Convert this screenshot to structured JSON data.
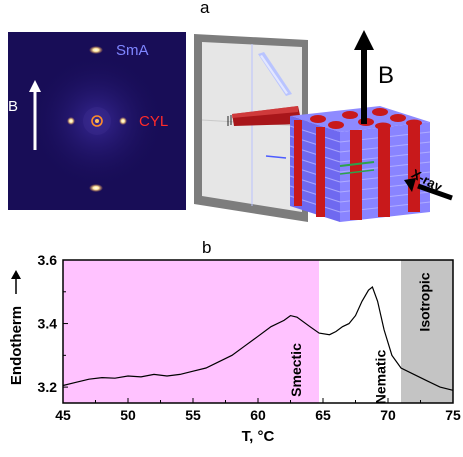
{
  "figure": {
    "panel_a_label": "a",
    "panel_b_label": "b"
  },
  "panel_a": {
    "xray_image": {
      "field_label": "B",
      "peak_label_top": "SmA",
      "peak_label_middle": "CYL",
      "colors": {
        "background": "#1a0c5a",
        "sma_label": "#7f86ff",
        "cyl_label": "#ff2a2a"
      }
    },
    "schematic": {
      "field_label": "B",
      "beam_label": "X-ray",
      "colors": {
        "cylinder": "#c8191b",
        "layer": "#7b76ff",
        "screen": "#d9d9d9"
      }
    }
  },
  "chart_data": {
    "type": "line",
    "xlabel": "T, °C",
    "ylabel": "Endotherm",
    "xlim": [
      45,
      75
    ],
    "ylim": [
      3.15,
      3.6
    ],
    "xticks": [
      45,
      50,
      55,
      60,
      65,
      70,
      75
    ],
    "yticks": [
      3.2,
      3.4,
      3.6
    ],
    "xtick_labels": [
      "45",
      "50",
      "55",
      "60",
      "65",
      "70",
      "75"
    ],
    "ytick_labels": [
      "3.2",
      "3.4",
      "3.6"
    ],
    "regions": [
      {
        "label": "Smectic",
        "from": 45,
        "to": 64.7,
        "color": "#ffc2ff"
      },
      {
        "label": "Nematic",
        "from": 64.7,
        "to": 71.0,
        "color": "#ffffff"
      },
      {
        "label": "Isotropic",
        "from": 71.0,
        "to": 75,
        "color": "#c4c4c4"
      }
    ],
    "x": [
      45,
      46,
      47,
      48,
      49,
      50,
      51,
      52,
      53,
      54,
      55,
      56,
      57,
      58,
      59,
      60,
      61,
      62,
      62.5,
      63,
      64,
      64.7,
      65.5,
      66,
      66.5,
      67,
      67.5,
      68,
      68.5,
      68.8,
      69.2,
      69.7,
      70.3,
      71,
      72,
      73,
      74,
      75
    ],
    "y": [
      3.205,
      3.215,
      3.225,
      3.23,
      3.228,
      3.235,
      3.232,
      3.24,
      3.235,
      3.24,
      3.25,
      3.26,
      3.28,
      3.3,
      3.33,
      3.36,
      3.39,
      3.41,
      3.425,
      3.42,
      3.39,
      3.37,
      3.365,
      3.375,
      3.39,
      3.4,
      3.425,
      3.47,
      3.505,
      3.515,
      3.47,
      3.38,
      3.3,
      3.26,
      3.24,
      3.22,
      3.2,
      3.19
    ]
  }
}
